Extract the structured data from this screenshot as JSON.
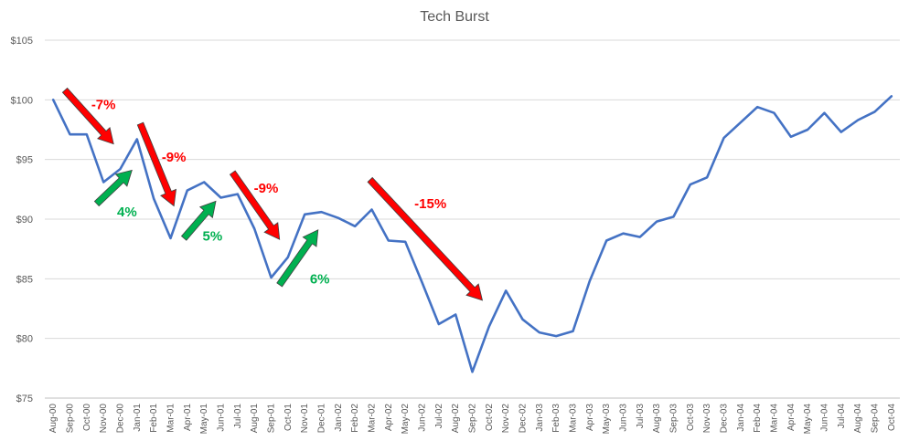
{
  "chart_data": {
    "type": "line",
    "title": "Tech Burst",
    "xlabel": "",
    "ylabel": "",
    "ylim": [
      75,
      105
    ],
    "yticks": [
      75,
      80,
      85,
      90,
      95,
      100,
      105
    ],
    "ytick_labels": [
      "$75",
      "$80",
      "$85",
      "$90",
      "$95",
      "$100",
      "$105"
    ],
    "grid": true,
    "legend": "none",
    "categories": [
      "Aug-00",
      "Sep-00",
      "Oct-00",
      "Nov-00",
      "Dec-00",
      "Jan-01",
      "Feb-01",
      "Mar-01",
      "Apr-01",
      "May-01",
      "Jun-01",
      "Jul-01",
      "Aug-01",
      "Sep-01",
      "Oct-01",
      "Nov-01",
      "Dec-01",
      "Jan-02",
      "Feb-02",
      "Mar-02",
      "Apr-02",
      "May-02",
      "Jun-02",
      "Jul-02",
      "Aug-02",
      "Sep-02",
      "Oct-02",
      "Nov-02",
      "Dec-02",
      "Jan-03",
      "Feb-03",
      "Mar-03",
      "Apr-03",
      "May-03",
      "Jun-03",
      "Jul-03",
      "Aug-03",
      "Sep-03",
      "Oct-03",
      "Nov-03",
      "Dec-03",
      "Jan-04",
      "Feb-04",
      "Mar-04",
      "Apr-04",
      "May-04",
      "Jun-04",
      "Jul-04",
      "Aug-04",
      "Sep-04",
      "Oct-04"
    ],
    "series": [
      {
        "color": "#4472c4",
        "values": [
          100,
          97.1,
          97.1,
          93.1,
          94.2,
          96.7,
          91.7,
          88.4,
          92.4,
          93.1,
          91.8,
          92.1,
          89.2,
          85.1,
          86.8,
          90.4,
          90.6,
          90.1,
          89.4,
          90.8,
          88.2,
          88.1,
          84.7,
          81.2,
          82.0,
          77.2,
          81.0,
          84.0,
          81.6,
          80.5,
          80.2,
          80.6,
          84.8,
          88.2,
          88.8,
          88.5,
          89.8,
          90.2,
          92.9,
          93.5,
          96.8,
          98.1,
          99.4,
          98.9,
          96.9,
          97.5,
          98.9,
          97.3,
          98.3,
          99.0,
          100.3
        ]
      }
    ],
    "annotations": [
      {
        "label": "-7%",
        "color": "#ff0000",
        "arrow_color": "#ff0000",
        "from": [
          0.7,
          100.8
        ],
        "to": [
          3.6,
          96.3
        ],
        "label_at": [
          3.0,
          99.6
        ],
        "label_anchor": "middle"
      },
      {
        "label": "4%",
        "color": "#00b050",
        "arrow_color": "#00b050",
        "from": [
          2.6,
          91.3
        ],
        "to": [
          4.7,
          94.1
        ],
        "label_at": [
          4.4,
          90.6
        ],
        "label_anchor": "middle"
      },
      {
        "label": "-9%",
        "color": "#ff0000",
        "arrow_color": "#ff0000",
        "from": [
          5.2,
          98.0
        ],
        "to": [
          7.2,
          91.1
        ],
        "label_at": [
          7.2,
          95.2
        ],
        "label_anchor": "middle"
      },
      {
        "label": "5%",
        "color": "#00b050",
        "arrow_color": "#00b050",
        "from": [
          7.8,
          88.4
        ],
        "to": [
          9.7,
          91.5
        ],
        "label_at": [
          9.5,
          88.6
        ],
        "label_anchor": "middle"
      },
      {
        "label": "-9%",
        "color": "#ff0000",
        "arrow_color": "#ff0000",
        "from": [
          10.7,
          93.9
        ],
        "to": [
          13.5,
          88.3
        ],
        "label_at": [
          12.7,
          92.6
        ],
        "label_anchor": "middle"
      },
      {
        "label": "6%",
        "color": "#00b050",
        "arrow_color": "#00b050",
        "from": [
          13.5,
          84.5
        ],
        "to": [
          15.8,
          89.1
        ],
        "label_at": [
          15.9,
          85.0
        ],
        "label_anchor": "middle"
      },
      {
        "label": "-15%",
        "color": "#ff0000",
        "arrow_color": "#ff0000",
        "from": [
          18.9,
          93.3
        ],
        "to": [
          25.6,
          83.2
        ],
        "label_at": [
          22.5,
          91.3
        ],
        "label_anchor": "middle"
      }
    ]
  }
}
